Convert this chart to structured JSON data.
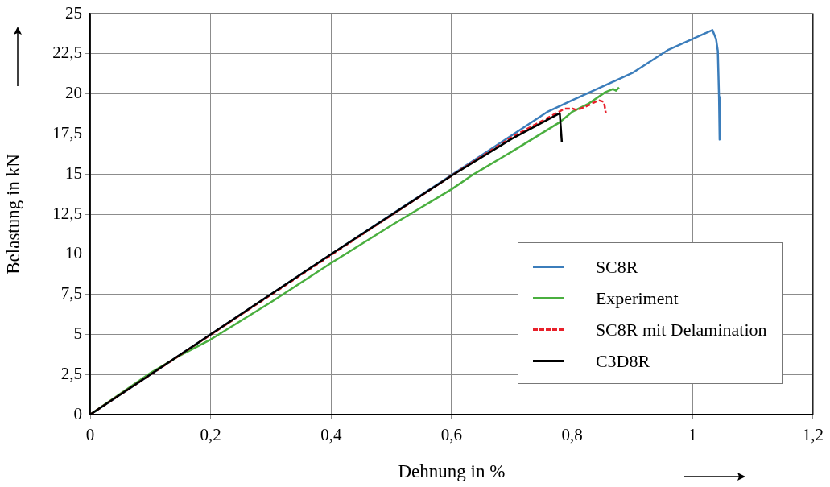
{
  "chart_data": {
    "type": "line",
    "xlabel": "Dehnung in %",
    "ylabel": "Belastung in kN",
    "xlim": [
      0,
      1.2
    ],
    "ylim": [
      0,
      25
    ],
    "xticks": [
      0,
      {
        "value": 0.2,
        "label": "0,2"
      },
      {
        "value": 0.4,
        "label": "0,4"
      },
      {
        "value": 0.6,
        "label": "0,6"
      },
      {
        "value": 0.8,
        "label": "0,8"
      },
      1,
      {
        "value": 1.2,
        "label": "1,2"
      }
    ],
    "yticks": [
      0,
      {
        "value": 2.5,
        "label": "2,5"
      },
      5,
      {
        "value": 7.5,
        "label": "7,5"
      },
      10,
      {
        "value": 12.5,
        "label": "12,5"
      },
      15,
      {
        "value": 17.5,
        "label": "17,5"
      },
      20,
      {
        "value": 22.5,
        "label": "22,5"
      },
      25
    ],
    "grid": true,
    "legend": "bottom right",
    "marker": "none",
    "series": [
      {
        "name": "SC8R",
        "color": "#3b7dbb",
        "line_style": "solid",
        "x": [
          0,
          0.4,
          0.76,
          0.8,
          0.9,
          0.96,
          1.033,
          1.039,
          1.042,
          1.044,
          1.045
        ],
        "values": [
          0,
          10,
          18.9,
          19.6,
          21.3,
          22.75,
          23.98,
          23.43,
          22.68,
          19.8,
          17.15
        ]
      },
      {
        "name": "Experiment",
        "color": "#4aaf3f",
        "line_style": "solid",
        "x": [
          0,
          0.1,
          0.15,
          0.2,
          0.3,
          0.4,
          0.5,
          0.6,
          0.633,
          0.689,
          0.7,
          0.78,
          0.801,
          0.828,
          0.855,
          0.868,
          0.873,
          0.878
        ],
        "values": [
          0,
          2.6,
          3.7,
          4.68,
          7.0,
          9.45,
          11.8,
          14.05,
          14.9,
          16.15,
          16.4,
          18.24,
          18.9,
          19.4,
          20.1,
          20.3,
          20.2,
          20.4
        ]
      },
      {
        "name": "SC8R mit Delamination",
        "color": "#e8202a",
        "line_style": "dashed",
        "x": [
          0,
          0.4,
          0.6,
          0.7,
          0.788,
          0.801,
          0.808,
          0.828,
          0.844,
          0.853,
          0.856
        ],
        "values": [
          0,
          9.95,
          14.9,
          17.3,
          19.08,
          19.08,
          18.98,
          19.3,
          19.6,
          19.5,
          18.8
        ]
      },
      {
        "name": "C3D8R",
        "color": "#000000",
        "line_style": "solid",
        "x": [
          0,
          0.4,
          0.6,
          0.7,
          0.7796,
          0.783
        ],
        "values": [
          0,
          10,
          14.9,
          17.2,
          18.79,
          17.0
        ]
      }
    ]
  }
}
